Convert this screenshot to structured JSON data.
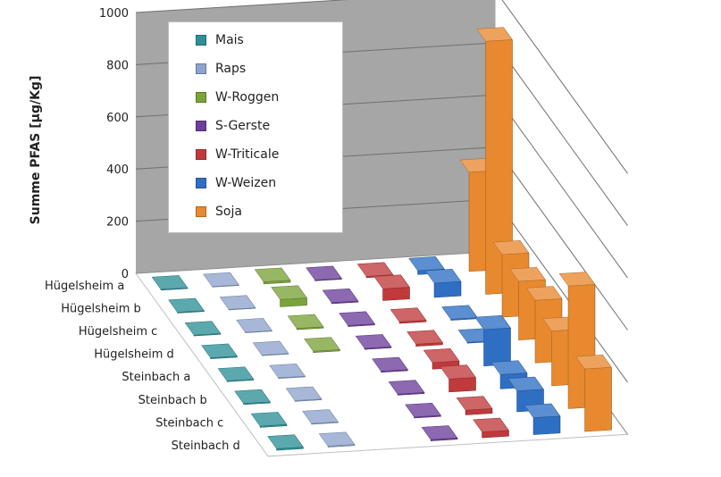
{
  "chart_data": {
    "type": "bar",
    "subtype": "3d-column",
    "title": "",
    "ylabel": "Summe PFAS [µg/Kg]",
    "ylim": [
      0,
      1000
    ],
    "yticks": [
      "0",
      "200",
      "400",
      "600",
      "800",
      "1000"
    ],
    "grid": true,
    "legend_position": "top-left",
    "categories": [
      "Hügelsheim a",
      "Hügelsheim b",
      "Hügelsheim c",
      "Hügelsheim d",
      "Steinbach a",
      "Steinbach b",
      "Steinbach c",
      "Steinbach d"
    ],
    "series": [
      {
        "name": "Mais",
        "color": "#2e8f99",
        "values": [
          3,
          3,
          3,
          4,
          3,
          4,
          5,
          6
        ]
      },
      {
        "name": "Raps",
        "color": "#8da3cc",
        "values": [
          2,
          2,
          2,
          2,
          3,
          3,
          3,
          4
        ]
      },
      {
        "name": "W-Roggen",
        "color": "#7aa33a",
        "values": [
          8,
          28,
          5,
          5,
          null,
          null,
          null,
          null
        ]
      },
      {
        "name": "S-Gerste",
        "color": "#6b3f9b",
        "values": [
          3,
          4,
          4,
          4,
          4,
          4,
          4,
          5
        ]
      },
      {
        "name": "W-Triticale",
        "color": "#c0393b",
        "values": [
          5,
          45,
          6,
          8,
          25,
          50,
          18,
          22
        ]
      },
      {
        "name": "W-Weizen",
        "color": "#2e6fc4",
        "values": [
          15,
          55,
          4,
          3,
          140,
          55,
          80,
          65
        ]
      },
      {
        "name": "Soja",
        "color": "#e8892f",
        "values": [
          380,
          970,
          240,
          225,
          240,
          210,
          470,
          240
        ]
      }
    ]
  }
}
